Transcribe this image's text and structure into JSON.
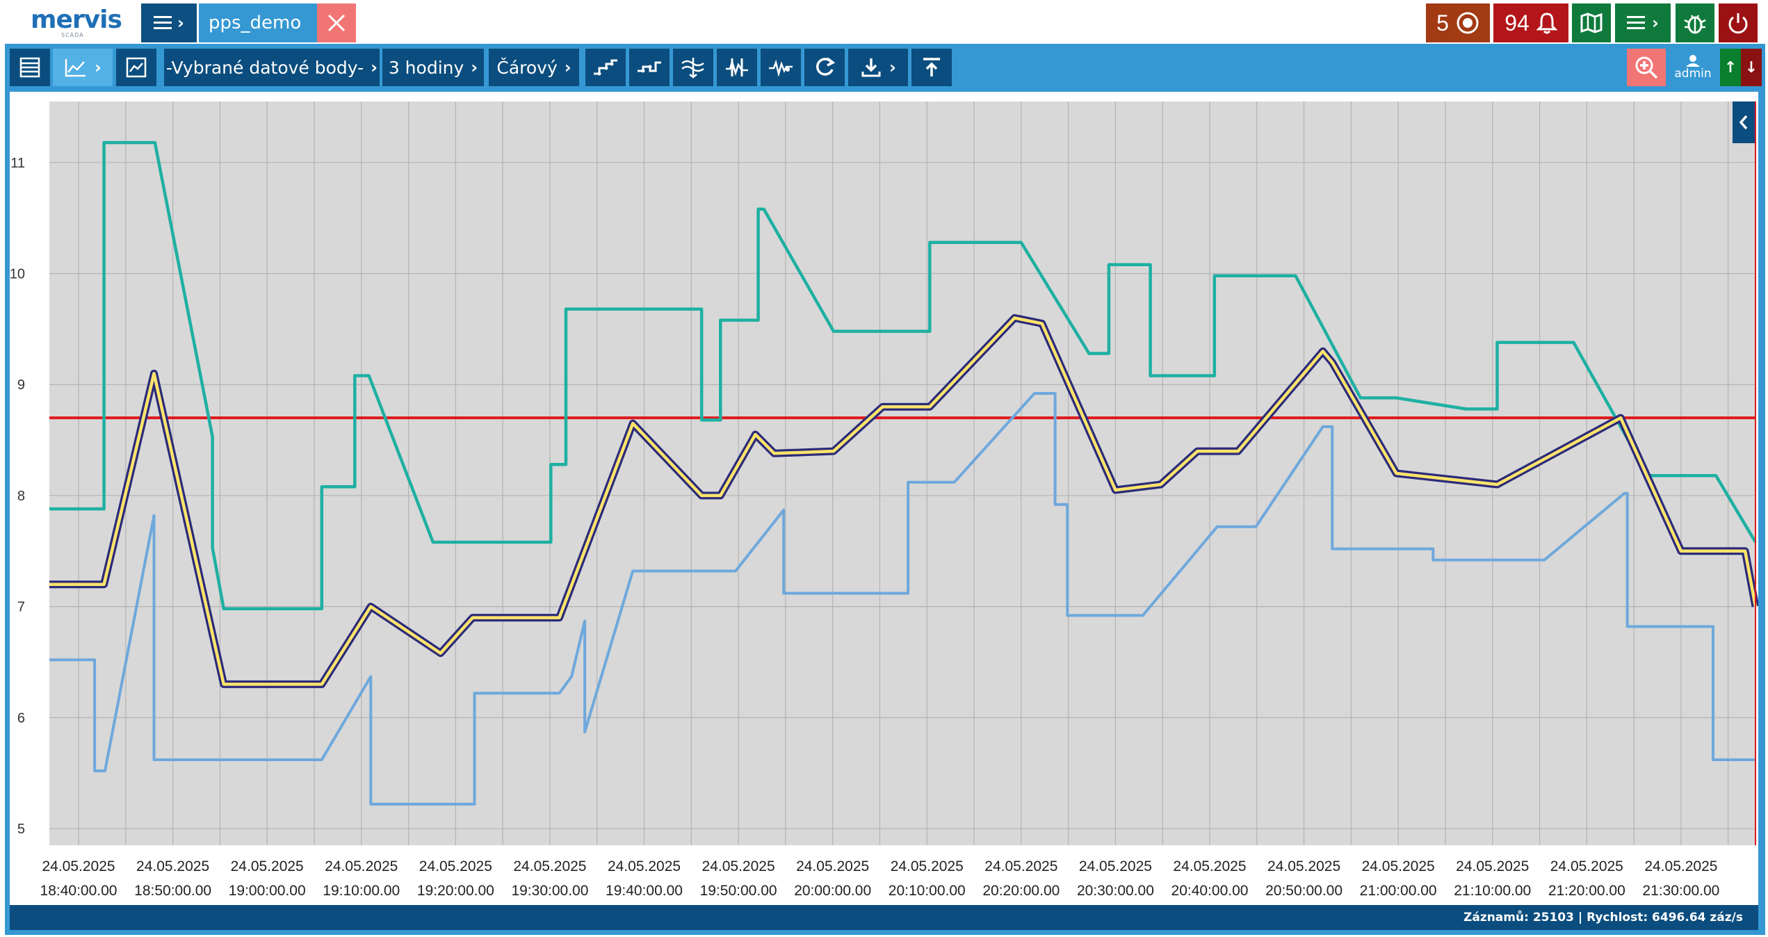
{
  "app": {
    "logo_text": "mervis",
    "logo_sub": "SCADA",
    "tab_label": "pps_demo"
  },
  "header_right": {
    "events_count": "5",
    "alarms_count": "94"
  },
  "toolbar": {
    "datapoints_label": "-Vybrané datové body-",
    "range_label": "3 hodiny",
    "type_label": "Čárový",
    "user_label": "admin",
    "up_arrow": "↑",
    "down_arrow": "↓"
  },
  "status": {
    "text": "Záznamů: 25103 | Rychlost: 6496.64 záz/s"
  },
  "colors": {
    "teal": "#1eb0a2",
    "lightblue": "#6ea8dc",
    "navy": "#2b2b7a",
    "yellow": "#ffe46b",
    "red": "#e0191c",
    "plot_bg": "#d8d8d8",
    "grid": "#b3b3b3"
  },
  "chart_data": {
    "type": "line",
    "ylim": [
      4.85,
      11.55
    ],
    "yticks": [
      5,
      6,
      7,
      8,
      9,
      10,
      11
    ],
    "xticks": [
      {
        "date": "24.05.2025",
        "time": "18:40:00.00",
        "t": 0
      },
      {
        "date": "24.05.2025",
        "time": "18:50:00.00",
        "t": 10
      },
      {
        "date": "24.05.2025",
        "time": "19:00:00.00",
        "t": 20
      },
      {
        "date": "24.05.2025",
        "time": "19:10:00.00",
        "t": 30
      },
      {
        "date": "24.05.2025",
        "time": "19:20:00.00",
        "t": 40
      },
      {
        "date": "24.05.2025",
        "time": "19:30:00.00",
        "t": 50
      },
      {
        "date": "24.05.2025",
        "time": "19:40:00.00",
        "t": 60
      },
      {
        "date": "24.05.2025",
        "time": "19:50:00.00",
        "t": 70
      },
      {
        "date": "24.05.2025",
        "time": "20:00:00.00",
        "t": 80
      },
      {
        "date": "24.05.2025",
        "time": "20:10:00.00",
        "t": 90
      },
      {
        "date": "24.05.2025",
        "time": "20:20:00.00",
        "t": 100
      },
      {
        "date": "24.05.2025",
        "time": "20:30:00.00",
        "t": 110
      },
      {
        "date": "24.05.2025",
        "time": "20:40:00.00",
        "t": 120
      },
      {
        "date": "24.05.2025",
        "time": "20:50:00.00",
        "t": 130
      },
      {
        "date": "24.05.2025",
        "time": "21:00:00.00",
        "t": 140
      },
      {
        "date": "24.05.2025",
        "time": "21:10:00.00",
        "t": 150
      },
      {
        "date": "24.05.2025",
        "time": "21:20:00.00",
        "t": 160
      },
      {
        "date": "24.05.2025",
        "time": "21:30:00.00",
        "t": 170
      }
    ],
    "xlim_t": [
      -3.1,
      177.9
    ],
    "threshold": 8.7,
    "series": [
      {
        "key": "teal",
        "points": [
          [
            -3.1,
            7.88
          ],
          [
            2.7,
            7.88
          ],
          [
            2.7,
            11.18
          ],
          [
            8.1,
            11.18
          ],
          [
            14.2,
            8.53
          ],
          [
            14.2,
            7.53
          ],
          [
            15.4,
            6.98
          ],
          [
            25.8,
            6.98
          ],
          [
            25.8,
            8.08
          ],
          [
            29.3,
            8.08
          ],
          [
            29.3,
            9.08
          ],
          [
            30.8,
            9.08
          ],
          [
            37.6,
            7.58
          ],
          [
            50.1,
            7.58
          ],
          [
            50.1,
            8.28
          ],
          [
            51.7,
            8.28
          ],
          [
            51.7,
            9.68
          ],
          [
            66.1,
            9.68
          ],
          [
            66.1,
            8.68
          ],
          [
            68.1,
            8.68
          ],
          [
            68.1,
            9.58
          ],
          [
            72.1,
            9.58
          ],
          [
            72.1,
            10.58
          ],
          [
            72.7,
            10.58
          ],
          [
            80.1,
            9.48
          ],
          [
            90.3,
            9.48
          ],
          [
            90.3,
            10.28
          ],
          [
            100.0,
            10.28
          ],
          [
            107.2,
            9.28
          ],
          [
            109.3,
            9.28
          ],
          [
            109.3,
            10.08
          ],
          [
            113.7,
            10.08
          ],
          [
            113.7,
            9.08
          ],
          [
            120.5,
            9.08
          ],
          [
            120.5,
            9.98
          ],
          [
            129.1,
            9.98
          ],
          [
            136.0,
            8.88
          ],
          [
            139.8,
            8.88
          ],
          [
            147.2,
            8.78
          ],
          [
            150.5,
            8.78
          ],
          [
            150.5,
            9.38
          ],
          [
            158.6,
            9.38
          ],
          [
            166.5,
            8.18
          ],
          [
            173.7,
            8.18
          ],
          [
            177.9,
            7.58
          ]
        ]
      },
      {
        "key": "lightblue",
        "points": [
          [
            -3.1,
            6.52
          ],
          [
            1.7,
            6.52
          ],
          [
            1.7,
            5.52
          ],
          [
            2.8,
            5.52
          ],
          [
            8.0,
            7.82
          ],
          [
            8.0,
            5.62
          ],
          [
            25.8,
            5.62
          ],
          [
            31.0,
            6.37
          ],
          [
            31.0,
            5.22
          ],
          [
            42.0,
            5.22
          ],
          [
            42.0,
            6.22
          ],
          [
            51.0,
            6.22
          ],
          [
            52.3,
            6.37
          ],
          [
            53.7,
            6.87
          ],
          [
            53.7,
            5.87
          ],
          [
            58.8,
            7.32
          ],
          [
            69.7,
            7.32
          ],
          [
            74.8,
            7.87
          ],
          [
            74.8,
            7.12
          ],
          [
            88.0,
            7.12
          ],
          [
            88.0,
            8.12
          ],
          [
            92.9,
            8.12
          ],
          [
            101.4,
            8.92
          ],
          [
            103.6,
            8.92
          ],
          [
            103.6,
            7.92
          ],
          [
            104.9,
            7.92
          ],
          [
            104.9,
            6.92
          ],
          [
            112.9,
            6.92
          ],
          [
            120.8,
            7.72
          ],
          [
            124.9,
            7.72
          ],
          [
            132.0,
            8.62
          ],
          [
            133.0,
            8.62
          ],
          [
            133.0,
            7.52
          ],
          [
            143.7,
            7.52
          ],
          [
            143.7,
            7.42
          ],
          [
            155.5,
            7.42
          ],
          [
            164.0,
            8.02
          ],
          [
            164.3,
            8.02
          ],
          [
            164.3,
            6.82
          ],
          [
            173.4,
            6.82
          ],
          [
            173.4,
            5.62
          ],
          [
            177.9,
            5.62
          ]
        ]
      },
      {
        "key": "yellow",
        "points": [
          [
            -3.1,
            7.2
          ],
          [
            2.7,
            7.2
          ],
          [
            8.0,
            9.1
          ],
          [
            15.4,
            6.3
          ],
          [
            25.8,
            6.3
          ],
          [
            31.0,
            7.0
          ],
          [
            38.4,
            6.58
          ],
          [
            41.8,
            6.9
          ],
          [
            51.0,
            6.9
          ],
          [
            58.8,
            8.65
          ],
          [
            66.1,
            8.0
          ],
          [
            68.1,
            8.0
          ],
          [
            71.8,
            8.55
          ],
          [
            73.8,
            8.38
          ],
          [
            80.1,
            8.4
          ],
          [
            85.3,
            8.8
          ],
          [
            90.3,
            8.8
          ],
          [
            99.3,
            9.6
          ],
          [
            102.2,
            9.55
          ],
          [
            110.0,
            8.05
          ],
          [
            114.8,
            8.1
          ],
          [
            118.7,
            8.4
          ],
          [
            123.0,
            8.4
          ],
          [
            132.0,
            9.3
          ],
          [
            133.0,
            9.2
          ],
          [
            139.8,
            8.2
          ],
          [
            150.5,
            8.1
          ],
          [
            163.6,
            8.7
          ],
          [
            170.0,
            7.5
          ],
          [
            176.8,
            7.5
          ],
          [
            177.9,
            7.0
          ]
        ]
      }
    ]
  }
}
